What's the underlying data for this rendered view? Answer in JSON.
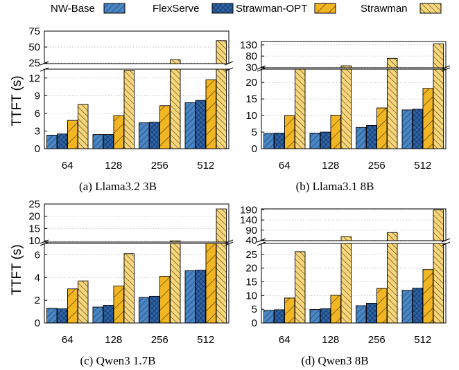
{
  "legend": [
    {
      "label": "NW-Base",
      "color": "#4a86c5",
      "pattern": "diag-right"
    },
    {
      "label": "FlexServe",
      "color": "#2e64a8",
      "pattern": "crosshatch"
    },
    {
      "label": "Strawman-OPT",
      "color": "#f2b622",
      "pattern": "diag-right-wide"
    },
    {
      "label": "Strawman",
      "color": "#f7d67c",
      "pattern": "diag-left"
    }
  ],
  "ylabel_top": "TTFT (s)",
  "ylabel_bottom": "TTFT (s)",
  "chart_data": [
    {
      "type": "bar",
      "caption": "(a) Llama3.2 3B",
      "categories": [
        "64",
        "128",
        "256",
        "512"
      ],
      "series": [
        {
          "name": "NW-Base",
          "values": [
            2.3,
            2.4,
            4.4,
            7.8
          ]
        },
        {
          "name": "FlexServe",
          "values": [
            2.5,
            2.4,
            4.5,
            8.2
          ]
        },
        {
          "name": "Strawman-OPT",
          "values": [
            4.8,
            5.6,
            7.3,
            11.7
          ]
        },
        {
          "name": "Strawman",
          "values": [
            7.5,
            13.3,
            30,
            60
          ]
        }
      ],
      "lower_range": [
        0,
        13.5
      ],
      "lower_ticks": [
        "0",
        "3",
        "6",
        "9",
        "12"
      ],
      "upper_range": [
        24,
        75
      ],
      "upper_ticks": [
        "25",
        "50",
        "75"
      ]
    },
    {
      "type": "bar",
      "caption": "(b) Llama3.1 8B",
      "categories": [
        "64",
        "128",
        "256",
        "512"
      ],
      "series": [
        {
          "name": "NW-Base",
          "values": [
            4.6,
            4.7,
            6.4,
            11.7
          ]
        },
        {
          "name": "FlexServe",
          "values": [
            4.7,
            5.0,
            7.0,
            11.9
          ]
        },
        {
          "name": "Strawman-OPT",
          "values": [
            10.0,
            10.1,
            12.3,
            18.2
          ]
        },
        {
          "name": "Strawman",
          "values": [
            24,
            37,
            70,
            135
          ]
        }
      ],
      "lower_range": [
        0,
        24
      ],
      "lower_ticks": [
        "0",
        "5",
        "10",
        "15",
        "20"
      ],
      "upper_range": [
        28,
        145
      ],
      "upper_ticks": [
        "30",
        "80",
        "130"
      ]
    },
    {
      "type": "bar",
      "caption": "(c) Qwen3 1.7B",
      "categories": [
        "64",
        "128",
        "256",
        "512"
      ],
      "series": [
        {
          "name": "NW-Base",
          "values": [
            1.3,
            1.4,
            2.25,
            4.6
          ]
        },
        {
          "name": "FlexServe",
          "values": [
            1.25,
            1.55,
            2.35,
            4.65
          ]
        },
        {
          "name": "Strawman-OPT",
          "values": [
            3.0,
            3.25,
            4.1,
            7
          ]
        },
        {
          "name": "Strawman",
          "values": [
            3.7,
            6.1,
            10,
            23
          ]
        }
      ],
      "lower_range": [
        0,
        7
      ],
      "lower_ticks": [
        "0",
        "2",
        "4",
        "6"
      ],
      "upper_range": [
        9.5,
        25
      ],
      "upper_ticks": [
        "10",
        "15",
        "20",
        "25"
      ]
    },
    {
      "type": "bar",
      "caption": "(d) Qwen3 8B",
      "categories": [
        "64",
        "128",
        "256",
        "512"
      ],
      "series": [
        {
          "name": "NW-Base",
          "values": [
            4.6,
            4.9,
            6.3,
            11.9
          ]
        },
        {
          "name": "FlexServe",
          "values": [
            4.8,
            5.2,
            7.2,
            12.7
          ]
        },
        {
          "name": "Strawman-OPT",
          "values": [
            9.1,
            10.1,
            12.6,
            19.5
          ]
        },
        {
          "name": "Strawman",
          "values": [
            26,
            58,
            78,
            190
          ]
        }
      ],
      "lower_range": [
        0,
        29
      ],
      "lower_ticks": [
        "0",
        "5",
        "10",
        "15",
        "20",
        "25"
      ],
      "upper_range": [
        38,
        195
      ],
      "upper_ticks": [
        "40",
        "90",
        "140",
        "190"
      ]
    }
  ]
}
